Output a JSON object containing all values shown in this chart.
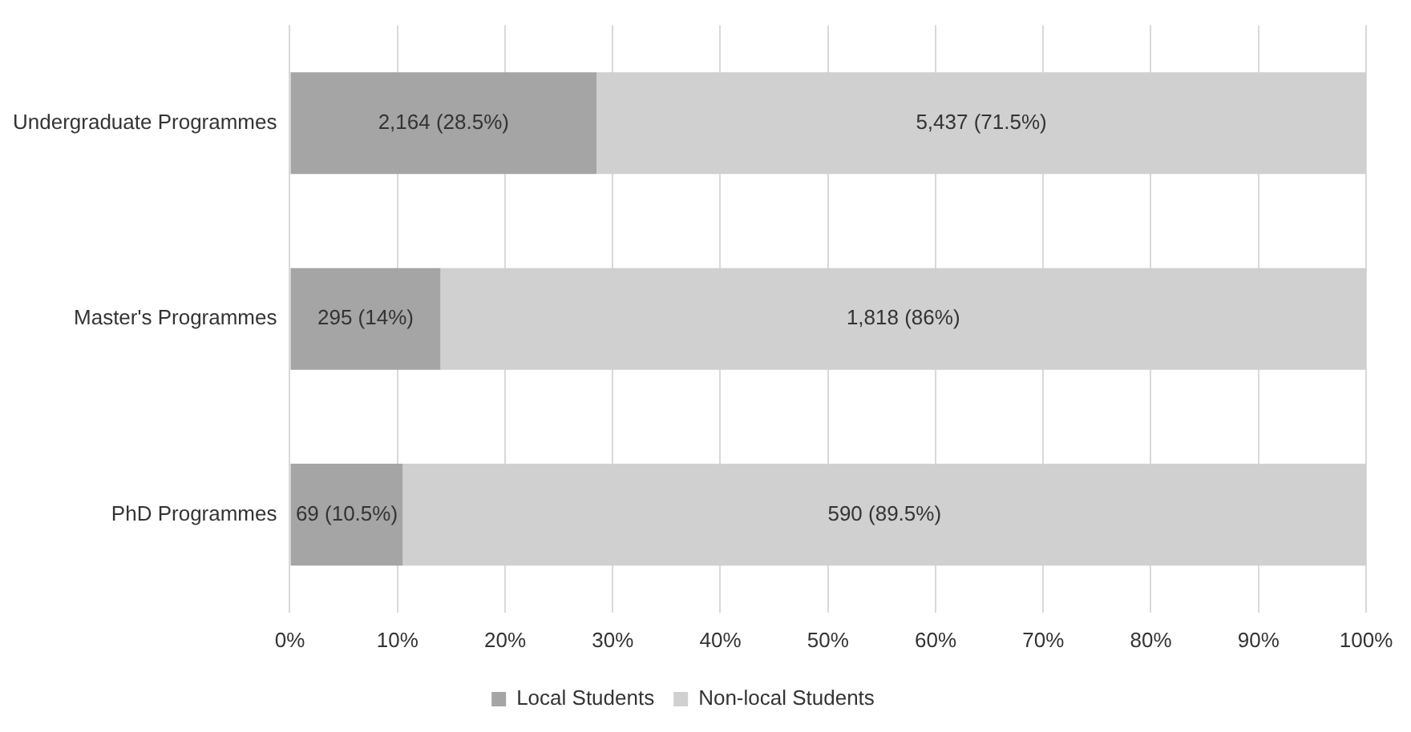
{
  "chart_data": {
    "type": "bar",
    "orientation": "horizontal",
    "stacked": true,
    "categories": [
      "Undergraduate Programmes",
      "Master's Programmes",
      "PhD Programmes"
    ],
    "series": [
      {
        "name": "Local Students",
        "color": "#a5a5a5",
        "values": [
          28.5,
          14,
          10.5
        ],
        "value_labels": [
          "2,164 (28.5%)",
          "295 (14%)",
          "69 (10.5%)"
        ]
      },
      {
        "name": "Non-local Students",
        "color": "#d0d0d0",
        "values": [
          71.5,
          86,
          89.5
        ],
        "value_labels": [
          "5,437 (71.5%)",
          "1,818 (86%)",
          "590 (89.5%)"
        ]
      }
    ],
    "xlim": [
      0,
      100
    ],
    "xticks": [
      {
        "value": 0,
        "label": "0%"
      },
      {
        "value": 10,
        "label": "10%"
      },
      {
        "value": 20,
        "label": "20%"
      },
      {
        "value": 30,
        "label": "30%"
      },
      {
        "value": 40,
        "label": "40%"
      },
      {
        "value": 50,
        "label": "50%"
      },
      {
        "value": 60,
        "label": "60%"
      },
      {
        "value": 70,
        "label": "70%"
      },
      {
        "value": 80,
        "label": "80%"
      },
      {
        "value": 90,
        "label": "90%"
      },
      {
        "value": 100,
        "label": "100%"
      }
    ],
    "grid": "x",
    "legend": "bottom"
  }
}
